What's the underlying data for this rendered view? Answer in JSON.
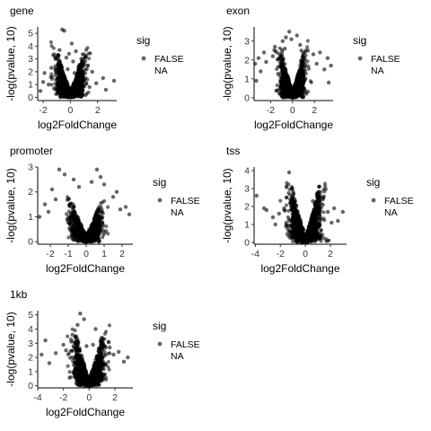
{
  "legend": {
    "title": "sig",
    "entries": [
      "FALSE",
      "NA"
    ],
    "placement": "right"
  },
  "colors": {
    "point": "#000000",
    "axis": "#000000",
    "text": "#333333"
  },
  "chart_data": [
    {
      "type": "scatter",
      "title": "gene",
      "xlabel": "log2FoldChange",
      "ylabel": "-log(pvalue, 10)",
      "xticks": [
        -2,
        0,
        2
      ],
      "yticks": [
        0,
        1,
        2,
        3,
        4,
        5
      ],
      "xlim": [
        -2.4,
        3.4
      ],
      "ylim": [
        -0.25,
        5.5
      ],
      "grid": false,
      "legend": {
        "title": "sig",
        "entries": [
          "FALSE",
          "NA"
        ]
      },
      "series": [
        {
          "points": [
            [
              -0.6,
              5.3
            ],
            [
              -0.45,
              5.2
            ],
            [
              0.1,
              4.2
            ],
            [
              -0.8,
              3.7
            ],
            [
              -0.1,
              3.4
            ],
            [
              0.4,
              3.6
            ],
            [
              -1.1,
              3.0
            ],
            [
              0.9,
              3.0
            ],
            [
              -0.3,
              3.1
            ],
            [
              0.2,
              2.8
            ],
            [
              -1.4,
              2.3
            ],
            [
              1.2,
              2.2
            ],
            [
              -0.7,
              2.5
            ],
            [
              0.6,
              2.4
            ],
            [
              -1.9,
              1.9
            ],
            [
              1.6,
              2.0
            ],
            [
              -0.2,
              2.2
            ],
            [
              2.4,
              1.5
            ],
            [
              -2.0,
              1.2
            ],
            [
              3.2,
              1.3
            ],
            [
              -1.6,
              1.0
            ],
            [
              1.9,
              1.1
            ],
            [
              2.6,
              0.6
            ],
            [
              -2.2,
              0.5
            ],
            [
              -1.2,
              0.7
            ],
            [
              1.4,
              0.8
            ],
            [
              -0.9,
              1.3
            ],
            [
              0.8,
              1.5
            ],
            [
              -0.5,
              1.8
            ],
            [
              0.3,
              1.9
            ]
          ]
        }
      ]
    },
    {
      "type": "scatter",
      "title": "exon",
      "xlabel": "log2FoldChange",
      "ylabel": "-log(pvalue, 10)",
      "xticks": [
        -2,
        0,
        2
      ],
      "yticks": [
        0,
        1,
        2,
        3
      ],
      "xlim": [
        -3.5,
        3.7
      ],
      "ylim": [
        -0.15,
        3.75
      ],
      "grid": false,
      "legend": {
        "title": "sig",
        "entries": [
          "FALSE",
          "NA"
        ]
      },
      "series": [
        {
          "points": [
            [
              -0.3,
              3.5
            ],
            [
              -0.6,
              3.2
            ],
            [
              -0.1,
              3.1
            ],
            [
              0.4,
              3.3
            ],
            [
              -0.9,
              3.0
            ],
            [
              0.7,
              2.8
            ],
            [
              -1.6,
              2.7
            ],
            [
              1.4,
              2.5
            ],
            [
              -2.6,
              2.4
            ],
            [
              2.5,
              2.4
            ],
            [
              -3.1,
              2.1
            ],
            [
              3.2,
              2.1
            ],
            [
              -3.4,
              1.8
            ],
            [
              3.5,
              1.7
            ],
            [
              -2.9,
              1.4
            ],
            [
              2.9,
              1.5
            ],
            [
              -1.8,
              2.2
            ],
            [
              1.9,
              2.3
            ],
            [
              -0.7,
              2.6
            ],
            [
              0.8,
              2.5
            ],
            [
              -3.3,
              0.9
            ],
            [
              3.3,
              0.8
            ],
            [
              -2.4,
              1.9
            ],
            [
              2.2,
              1.8
            ]
          ]
        }
      ]
    },
    {
      "type": "scatter",
      "title": "promoter",
      "xlabel": "log2FoldChange",
      "ylabel": "-log(pvalue, 10)",
      "xticks": [
        -2,
        -1,
        0,
        1,
        2
      ],
      "yticks": [
        0,
        1,
        2,
        3
      ],
      "xlim": [
        -2.7,
        2.6
      ],
      "ylim": [
        -0.1,
        3.0
      ],
      "grid": false,
      "legend": {
        "title": "sig",
        "entries": [
          "FALSE",
          "NA"
        ]
      },
      "series": [
        {
          "points": [
            [
              -1.5,
              2.9
            ],
            [
              -1.2,
              2.7
            ],
            [
              0.6,
              2.9
            ],
            [
              0.8,
              2.6
            ],
            [
              -0.7,
              2.5
            ],
            [
              1.0,
              2.3
            ],
            [
              -1.9,
              2.1
            ],
            [
              1.7,
              2.0
            ],
            [
              -2.3,
              1.5
            ],
            [
              2.2,
              1.4
            ],
            [
              -2.6,
              1.0
            ],
            [
              2.4,
              1.1
            ],
            [
              -1.7,
              1.7
            ],
            [
              1.5,
              1.8
            ],
            [
              -2.1,
              1.2
            ],
            [
              1.9,
              1.3
            ],
            [
              -0.4,
              2.2
            ],
            [
              0.3,
              2.4
            ]
          ]
        }
      ]
    },
    {
      "type": "scatter",
      "title": "tss",
      "xlabel": "log2FoldChange",
      "ylabel": "-log(pvalue, 10)",
      "xticks": [
        -4,
        -2,
        0,
        2
      ],
      "yticks": [
        0,
        1,
        2,
        3,
        4
      ],
      "xlim": [
        -4.1,
        3.3
      ],
      "ylim": [
        -0.1,
        4.2
      ],
      "grid": false,
      "legend": {
        "title": "sig",
        "entries": [
          "FALSE",
          "NA"
        ]
      },
      "series": [
        {
          "points": [
            [
              -1.3,
              3.9
            ],
            [
              -3.9,
              2.6
            ],
            [
              -3.3,
              1.9
            ],
            [
              -3.1,
              1.8
            ],
            [
              -2.6,
              1.4
            ],
            [
              -2.1,
              1.6
            ],
            [
              -1.7,
              1.9
            ],
            [
              -1.5,
              2.5
            ],
            [
              -1.2,
              2.2
            ],
            [
              0.6,
              2.3
            ],
            [
              0.9,
              2.0
            ],
            [
              1.4,
              2.1
            ],
            [
              1.8,
              1.7
            ],
            [
              2.3,
              1.9
            ],
            [
              2.6,
              1.2
            ],
            [
              3.0,
              1.7
            ],
            [
              -2.4,
              1.0
            ],
            [
              2.1,
              1.1
            ]
          ]
        }
      ]
    },
    {
      "type": "scatter",
      "title": "1kb",
      "xlabel": "log2FoldChange",
      "ylabel": "-log(pvalue, 10)",
      "xticks": [
        -4,
        -2,
        0,
        2
      ],
      "yticks": [
        0,
        1,
        2,
        3,
        4,
        5
      ],
      "xlim": [
        -4.0,
        3.4
      ],
      "ylim": [
        -0.15,
        5.3
      ],
      "grid": false,
      "legend": {
        "title": "sig",
        "entries": [
          "FALSE",
          "NA"
        ]
      },
      "series": [
        {
          "points": [
            [
              -0.7,
              5.1
            ],
            [
              -0.4,
              4.7
            ],
            [
              -0.9,
              4.3
            ],
            [
              0.5,
              4.0
            ],
            [
              -1.3,
              3.6
            ],
            [
              1.0,
              3.4
            ],
            [
              -3.4,
              3.2
            ],
            [
              -2.0,
              2.9
            ],
            [
              1.6,
              2.7
            ],
            [
              -3.7,
              2.2
            ],
            [
              -2.6,
              2.3
            ],
            [
              2.3,
              2.4
            ],
            [
              3.0,
              2.0
            ],
            [
              -3.1,
              1.6
            ],
            [
              2.7,
              1.7
            ],
            [
              -1.8,
              2.5
            ],
            [
              1.9,
              2.2
            ],
            [
              -0.2,
              2.8
            ],
            [
              0.3,
              2.9
            ]
          ]
        }
      ]
    }
  ]
}
